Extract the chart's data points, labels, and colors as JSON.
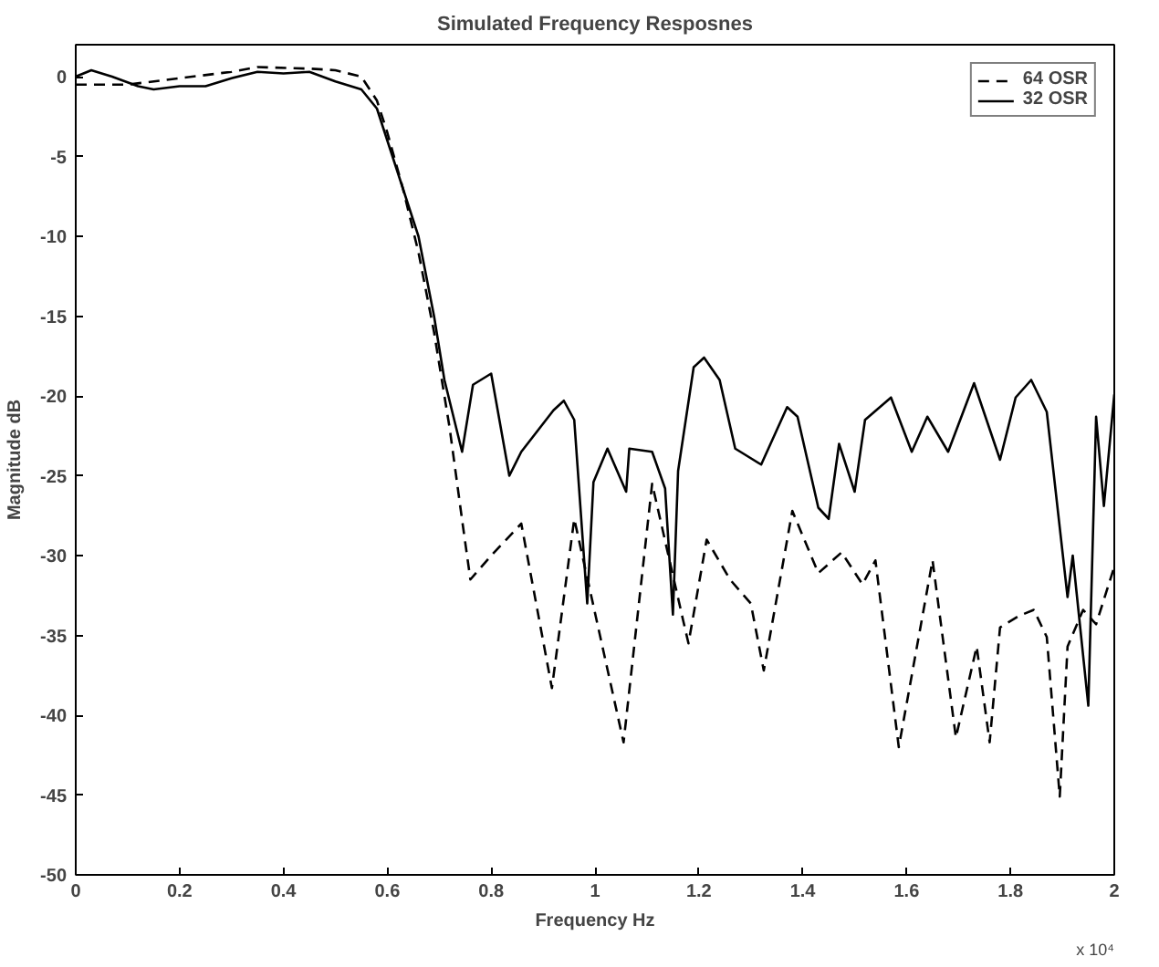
{
  "chart_data": {
    "type": "line",
    "title": "Simulated Frequency Resposnes",
    "xlabel": "Frequency Hz",
    "ylabel": "Magnitude dB",
    "annotations": [
      "x 10⁴"
    ],
    "xlim": [
      0,
      2
    ],
    "ylim": [
      -50,
      2
    ],
    "xticks": [
      0,
      0.2,
      0.4,
      0.6,
      0.8,
      1,
      1.2,
      1.4,
      1.6,
      1.8,
      2
    ],
    "yticks": [
      -50,
      -45,
      -40,
      -35,
      -30,
      -25,
      -20,
      -15,
      -10,
      -5,
      0
    ],
    "grid": false,
    "legend": "top right",
    "marker": "none",
    "series": [
      {
        "name": "64 OSR",
        "color": "#000000",
        "line_style": "dashed",
        "x": [
          0,
          0.1,
          0.2,
          0.3,
          0.35,
          0.45,
          0.5,
          0.55,
          0.58,
          0.6,
          0.63,
          0.66,
          0.69,
          0.72,
          0.745,
          0.76,
          0.8,
          0.858,
          0.917,
          0.96,
          1.055,
          1.11,
          1.17,
          1.18,
          1.215,
          1.26,
          1.3,
          1.325,
          1.38,
          1.43,
          1.475,
          1.515,
          1.54,
          1.585,
          1.65,
          1.695,
          1.735,
          1.76,
          1.78,
          1.815,
          1.845,
          1.87,
          1.895,
          1.91,
          1.94,
          1.965,
          2.0
        ],
        "values": [
          -0.5,
          -0.5,
          -0.1,
          0.3,
          0.6,
          0.5,
          0.4,
          0,
          -1.5,
          -3.5,
          -7,
          -11,
          -16,
          -22,
          -28,
          -31.5,
          -30,
          -28,
          -38.3,
          -27.7,
          -41.7,
          -25.5,
          -34.1,
          -35.5,
          -29,
          -31.5,
          -33,
          -37.2,
          -27.2,
          -31.1,
          -29.8,
          -31.8,
          -30.3,
          -42,
          -30.3,
          -41.4,
          -35.7,
          -41.7,
          -34.5,
          -33.8,
          -33.4,
          -35.1,
          -45.1,
          -35.7,
          -33.4,
          -34.3,
          -30.7
        ]
      },
      {
        "name": "32 OSR",
        "color": "#000000",
        "line_style": "solid",
        "x": [
          0,
          0.03,
          0.07,
          0.12,
          0.15,
          0.2,
          0.25,
          0.3,
          0.35,
          0.4,
          0.45,
          0.5,
          0.55,
          0.58,
          0.6,
          0.63,
          0.66,
          0.69,
          0.71,
          0.744,
          0.765,
          0.8,
          0.835,
          0.858,
          0.92,
          0.94,
          0.96,
          0.985,
          0.997,
          1.024,
          1.06,
          1.066,
          1.11,
          1.135,
          1.15,
          1.16,
          1.19,
          1.21,
          1.24,
          1.27,
          1.32,
          1.37,
          1.39,
          1.43,
          1.45,
          1.47,
          1.5,
          1.52,
          1.57,
          1.61,
          1.64,
          1.68,
          1.73,
          1.78,
          1.81,
          1.84,
          1.87,
          1.91,
          1.92,
          1.95,
          1.965,
          1.98,
          2.0
        ],
        "values": [
          0,
          0.4,
          0,
          -0.6,
          -0.8,
          -0.6,
          -0.6,
          -0.1,
          0.3,
          0.2,
          0.3,
          -0.3,
          -0.8,
          -2,
          -4,
          -7,
          -10,
          -15,
          -19,
          -23.5,
          -19.3,
          -18.6,
          -25,
          -23.5,
          -20.9,
          -20.3,
          -21.5,
          -33,
          -25.4,
          -23.3,
          -26,
          -23.3,
          -23.5,
          -25.8,
          -33.7,
          -24.7,
          -18.2,
          -17.6,
          -19,
          -23.3,
          -24.3,
          -20.7,
          -21.3,
          -27,
          -27.7,
          -23,
          -26,
          -21.5,
          -20.1,
          -23.5,
          -21.3,
          -23.5,
          -19.2,
          -24,
          -20.1,
          -19,
          -21,
          -32.6,
          -30,
          -39.4,
          -21.3,
          -26.9,
          -19.9
        ]
      }
    ]
  }
}
